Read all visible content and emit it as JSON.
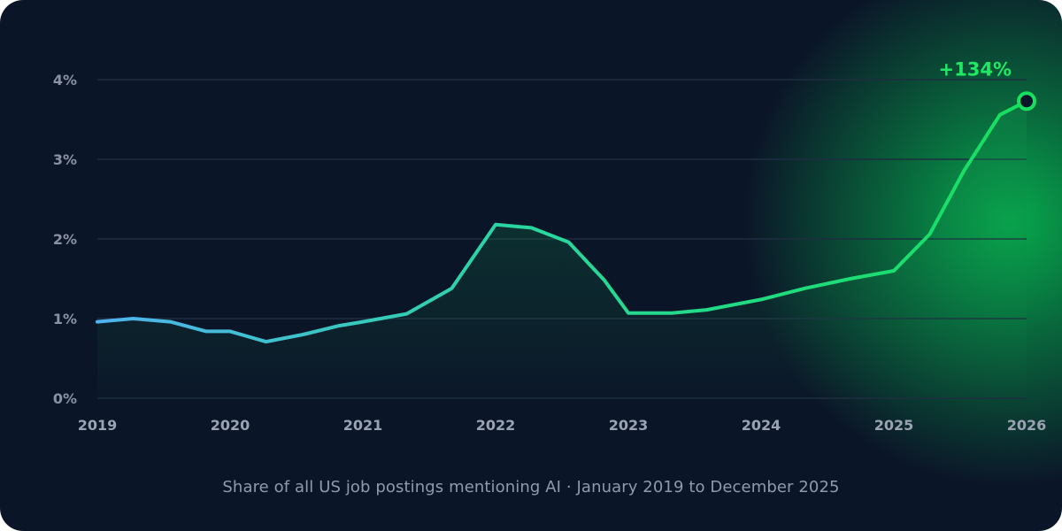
{
  "chart_data": {
    "type": "area",
    "title": "",
    "caption": "Share of all US job postings mentioning AI · January 2019 to December 2025",
    "xlabel": "",
    "ylabel": "",
    "xlim": [
      2019,
      2026
    ],
    "ylim": [
      0,
      4
    ],
    "x_ticks": [
      "2019",
      "2020",
      "2021",
      "2022",
      "2023",
      "2024",
      "2025",
      "2026"
    ],
    "y_ticks": [
      "0%",
      "1%",
      "2%",
      "3%",
      "4%"
    ],
    "grid": true,
    "colors": {
      "start": "#4fb3f0",
      "end": "#16e05e",
      "fill": "#0f8a4a",
      "glow": "#06c453",
      "marker_fill": "#0b1528"
    },
    "series": [
      {
        "x": [
          2019.0,
          2019.27,
          2019.55,
          2019.82,
          2020.0,
          2020.27,
          2020.55,
          2020.82,
          2021.0,
          2021.33,
          2021.67,
          2022.0,
          2022.27,
          2022.55,
          2022.82,
          2023.0,
          2023.33,
          2023.59,
          2024.0,
          2024.33,
          2024.67,
          2025.0,
          2025.27,
          2025.53,
          2025.8,
          2026.0
        ],
        "values": [
          0.96,
          1.0,
          0.96,
          0.84,
          0.84,
          0.71,
          0.8,
          0.91,
          0.96,
          1.06,
          1.38,
          2.18,
          2.14,
          1.96,
          1.48,
          1.07,
          1.07,
          1.11,
          1.24,
          1.38,
          1.5,
          1.6,
          2.06,
          2.86,
          3.56,
          3.73
        ]
      }
    ],
    "annotation": {
      "text": "+134%",
      "x": 2026.0,
      "y": 3.73
    }
  }
}
